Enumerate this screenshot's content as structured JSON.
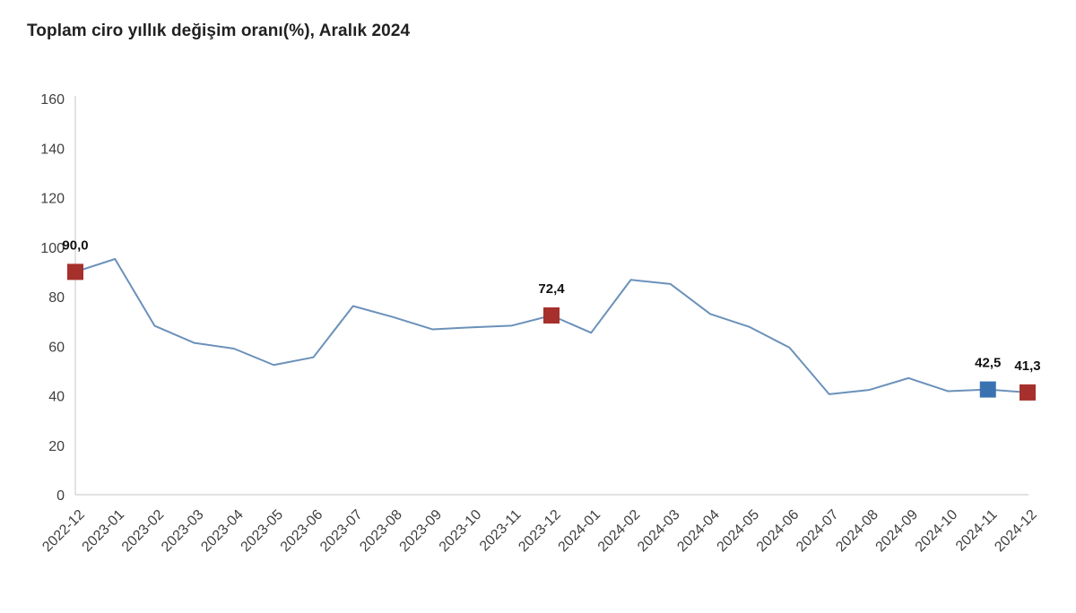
{
  "colors": {
    "background": "#FFFFFF",
    "title_text": "#212121",
    "tick_text": "#404040",
    "axis_line": "#D9D9D9",
    "line": "#6B91BA",
    "marker_red": "#A6302C",
    "marker_blue": "#3A72B1",
    "value_label_text": "#111111"
  },
  "chart_data": {
    "type": "line",
    "title": "Toplam ciro yıllık değişim oranı(%), Aralık 2024",
    "xlabel": "",
    "ylabel": "",
    "ylim": [
      0,
      160
    ],
    "yticks": [
      0,
      20,
      40,
      60,
      80,
      100,
      120,
      140,
      160
    ],
    "grid": false,
    "legend": false,
    "categories": [
      "2022-12",
      "2023-01",
      "2023-02",
      "2023-03",
      "2023-04",
      "2023-05",
      "2023-06",
      "2023-07",
      "2023-08",
      "2023-09",
      "2023-10",
      "2023-11",
      "2023-12",
      "2024-01",
      "2024-02",
      "2024-03",
      "2024-04",
      "2024-05",
      "2024-06",
      "2024-07",
      "2024-08",
      "2024-09",
      "2024-10",
      "2024-11",
      "2024-12"
    ],
    "values": [
      90.0,
      95.2,
      68.2,
      61.3,
      59.0,
      52.4,
      55.5,
      76.2,
      71.8,
      66.8,
      67.6,
      68.3,
      72.4,
      65.4,
      86.8,
      85.1,
      73.0,
      67.7,
      59.4,
      40.6,
      42.3,
      47.1,
      41.8,
      42.5,
      41.3
    ],
    "highlighted_points": [
      {
        "category": "2022-12",
        "value": 90.0,
        "label": "90,0",
        "marker": "red"
      },
      {
        "category": "2023-12",
        "value": 72.4,
        "label": "72,4",
        "marker": "red"
      },
      {
        "category": "2024-11",
        "value": 42.5,
        "label": "42,5",
        "marker": "blue"
      },
      {
        "category": "2024-12",
        "value": 41.3,
        "label": "41,3",
        "marker": "red"
      }
    ]
  }
}
